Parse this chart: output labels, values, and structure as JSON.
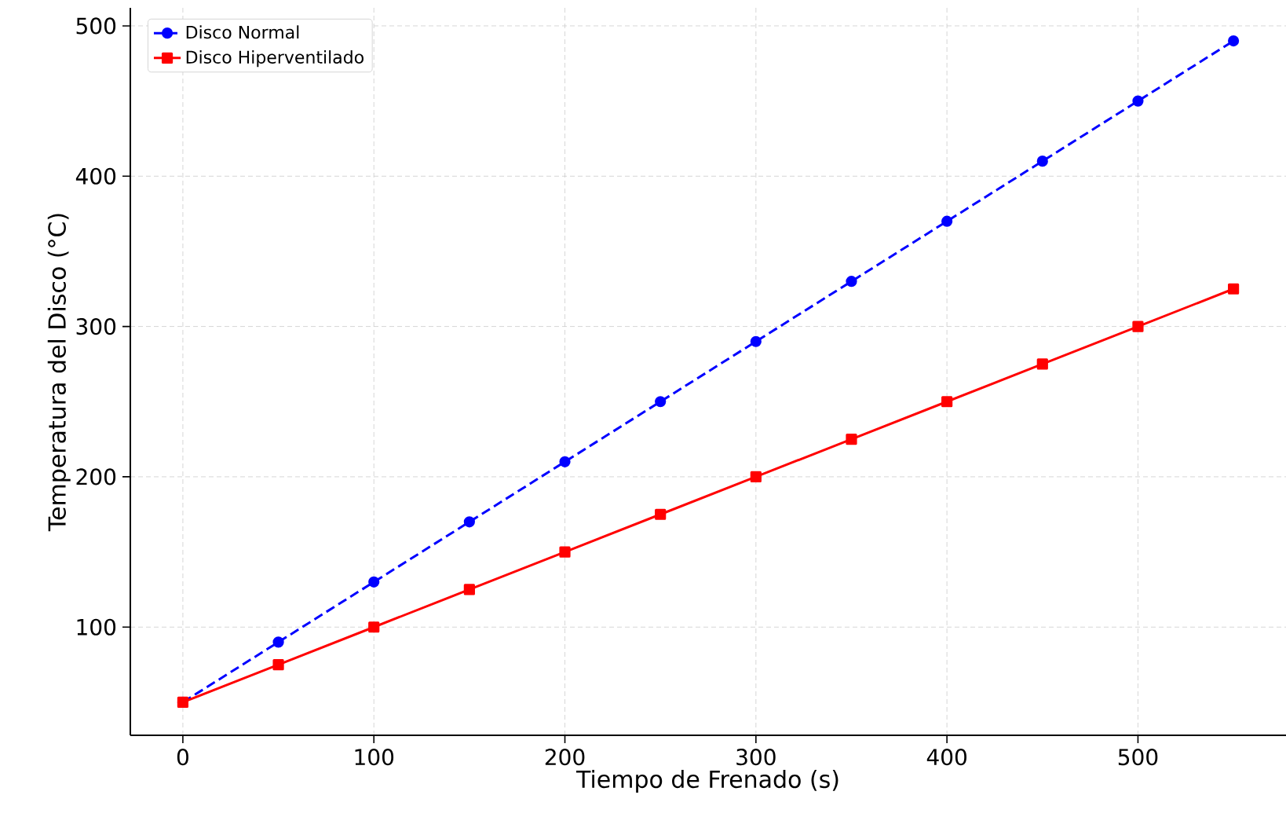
{
  "chart_data": {
    "type": "line",
    "xlabel": "Tiempo de Frenado (s)",
    "ylabel": "Temperatura del Disco (°C)",
    "x": [
      0,
      50,
      100,
      150,
      200,
      250,
      300,
      350,
      400,
      450,
      500,
      550
    ],
    "series": [
      {
        "name": "Disco Normal",
        "color": "#0000ff",
        "marker": "circle",
        "line_style": "dashed",
        "values": [
          50,
          90,
          130,
          170,
          210,
          250,
          290,
          330,
          370,
          410,
          450,
          490
        ]
      },
      {
        "name": "Disco Hiperventilado",
        "color": "#ff0000",
        "marker": "square",
        "line_style": "solid",
        "values": [
          50,
          75,
          100,
          125,
          150,
          175,
          200,
          225,
          250,
          275,
          300,
          325
        ]
      }
    ],
    "xlim": [
      -27.5,
      577.5
    ],
    "ylim": [
      28,
      512
    ],
    "xticks": [
      0,
      100,
      200,
      300,
      400,
      500
    ],
    "yticks": [
      100,
      200,
      300,
      400,
      500
    ],
    "grid": true,
    "legend": "top left"
  }
}
